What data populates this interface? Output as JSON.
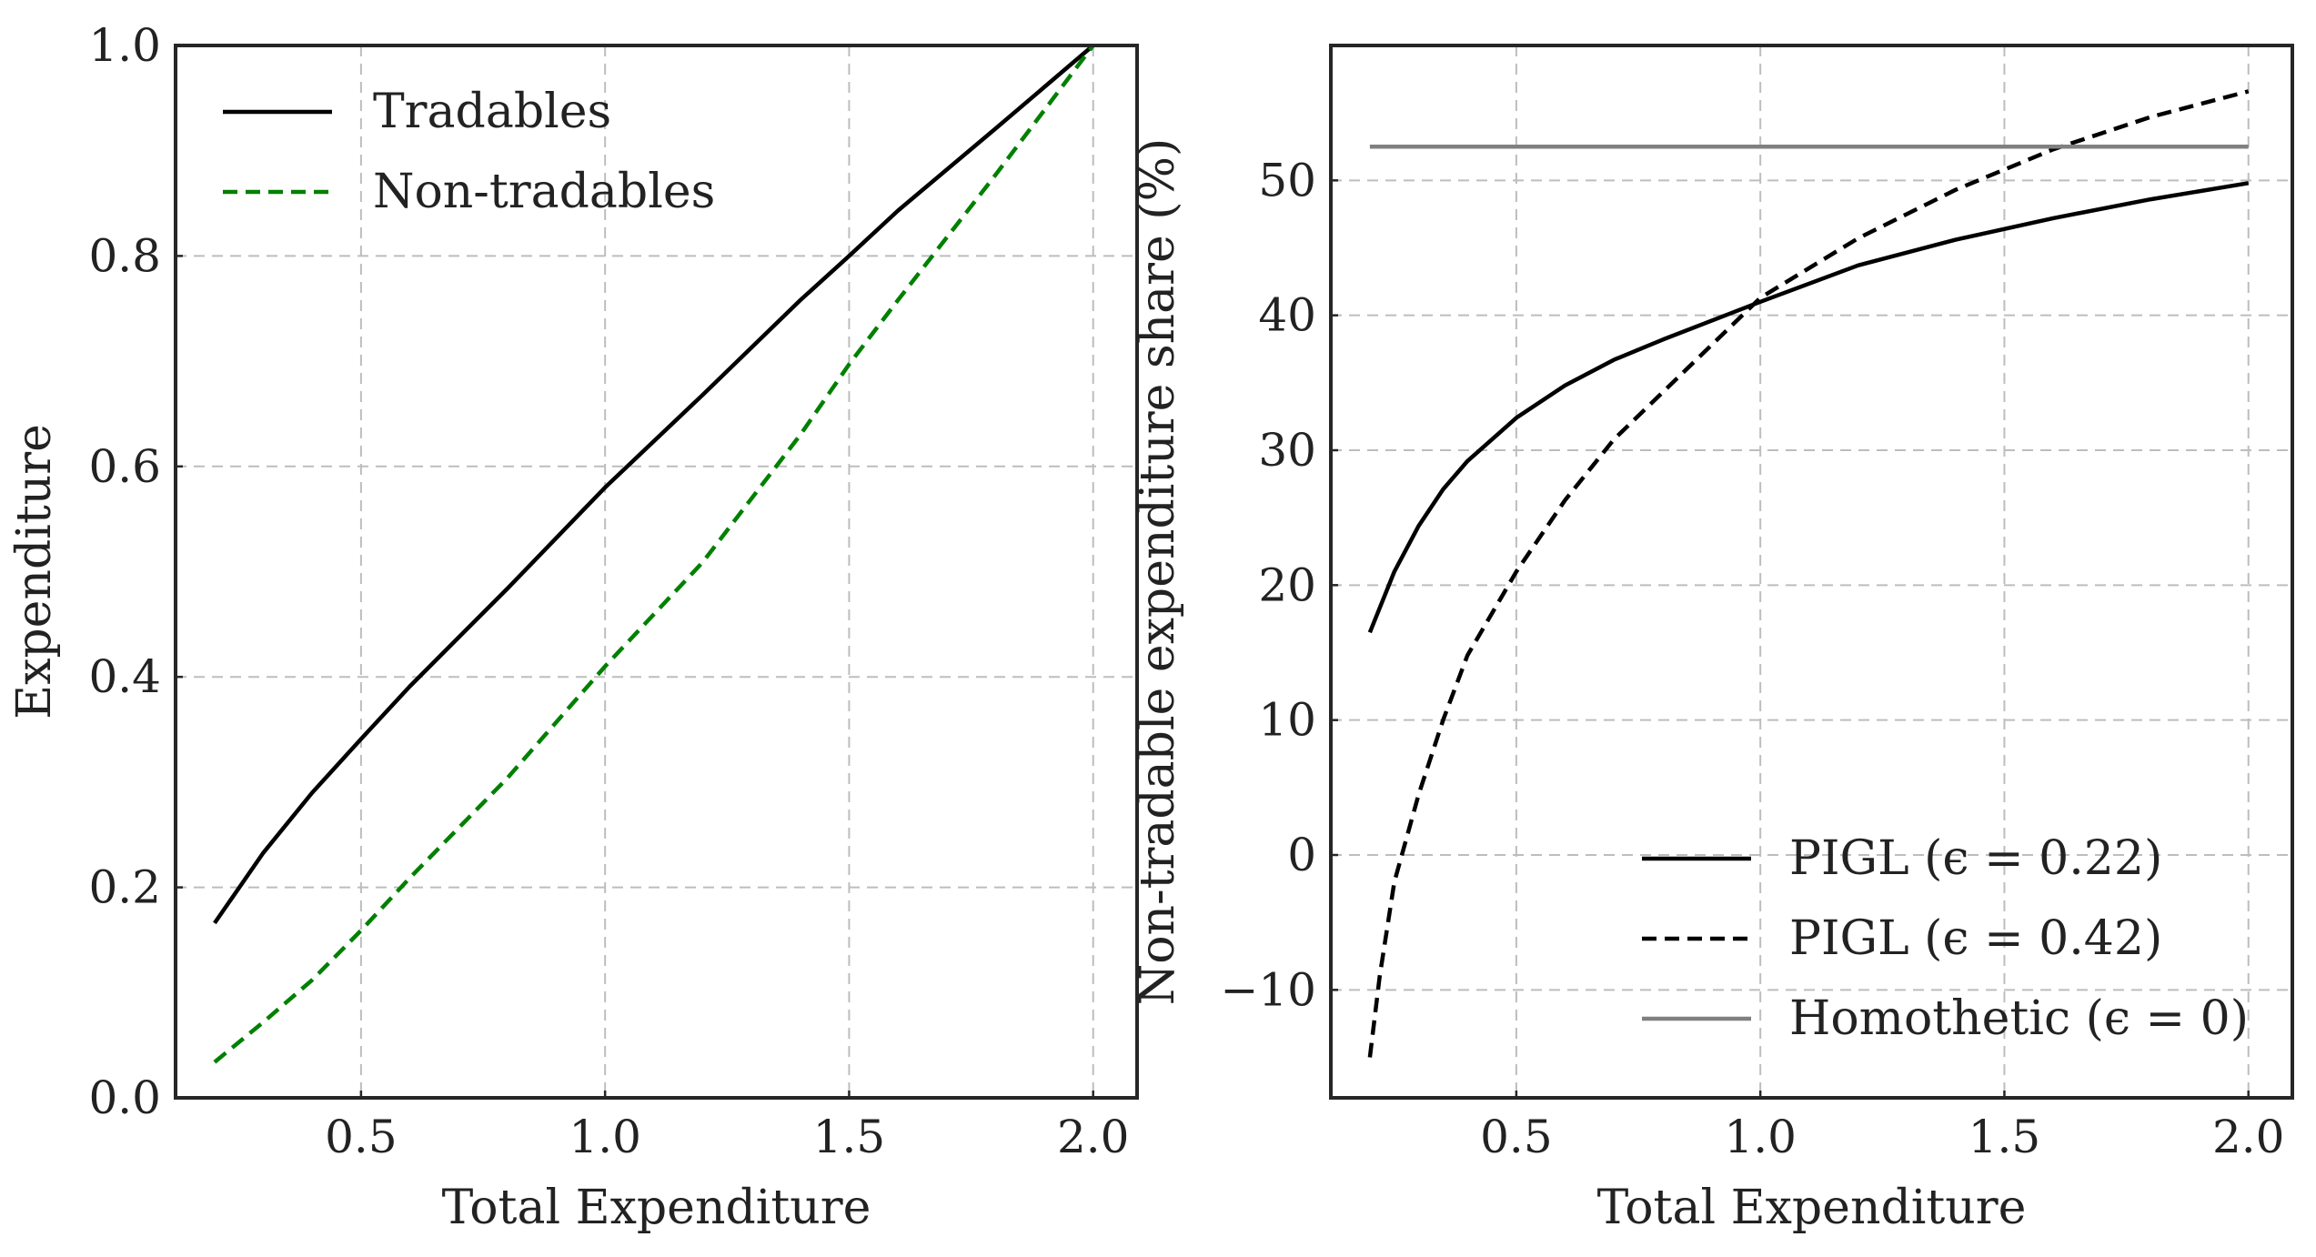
{
  "chart_data": [
    {
      "type": "line",
      "xlabel": "Total Expenditure",
      "ylabel": "Expenditure",
      "xlim": [
        0.12,
        2.09
      ],
      "ylim": [
        0.0,
        1.0
      ],
      "xticks": [
        "0.5",
        "1.0",
        "1.5",
        "2.0"
      ],
      "yticks": [
        "0.0",
        "0.2",
        "0.4",
        "0.6",
        "0.8",
        "1.0"
      ],
      "grid": true,
      "legend_position": "top-left",
      "series": [
        {
          "name": "Tradables",
          "color": "#000000",
          "style": "solid",
          "x": [
            0.2,
            0.3,
            0.4,
            0.5,
            0.6,
            0.8,
            1.0,
            1.2,
            1.4,
            1.5,
            1.6,
            1.8,
            2.0
          ],
          "y": [
            0.166,
            0.233,
            0.29,
            0.341,
            0.391,
            0.484,
            0.58,
            0.668,
            0.758,
            0.8,
            0.843,
            0.921,
            1.0
          ]
        },
        {
          "name": "Non-tradables",
          "color": "#008000",
          "style": "dashed",
          "x": [
            0.2,
            0.3,
            0.4,
            0.5,
            0.6,
            0.8,
            1.0,
            1.2,
            1.4,
            1.5,
            1.6,
            1.8,
            2.0
          ],
          "y": [
            0.034,
            0.072,
            0.112,
            0.159,
            0.209,
            0.304,
            0.41,
            0.509,
            0.63,
            0.697,
            0.758,
            0.877,
            1.0
          ]
        }
      ]
    },
    {
      "type": "line",
      "xlabel": "Total Expenditure",
      "ylabel": "Non-tradable expenditure share (%)",
      "xlim": [
        0.12,
        2.09
      ],
      "ylim": [
        -18,
        60
      ],
      "xticks": [
        "0.5",
        "1.0",
        "1.5",
        "2.0"
      ],
      "yticks": [
        "−10",
        "0",
        "10",
        "20",
        "30",
        "40",
        "50"
      ],
      "ytick_values": [
        -10,
        0,
        10,
        20,
        30,
        40,
        50
      ],
      "grid": true,
      "legend_position": "bottom-right",
      "series": [
        {
          "name": "PIGL (ϵ = 0.22)",
          "color": "#000000",
          "style": "solid",
          "x": [
            0.2,
            0.25,
            0.3,
            0.35,
            0.4,
            0.5,
            0.6,
            0.7,
            0.8,
            1.0,
            1.2,
            1.4,
            1.6,
            1.8,
            2.0
          ],
          "y": [
            16.5,
            21.0,
            24.4,
            27.1,
            29.2,
            32.4,
            34.8,
            36.7,
            38.2,
            41.0,
            43.7,
            45.6,
            47.2,
            48.6,
            49.8
          ]
        },
        {
          "name": "PIGL (ϵ = 0.42)",
          "color": "#000000",
          "style": "dashed",
          "x": [
            0.2,
            0.22,
            0.25,
            0.3,
            0.35,
            0.4,
            0.5,
            0.6,
            0.7,
            0.8,
            1.0,
            1.2,
            1.4,
            1.6,
            1.8,
            2.0
          ],
          "y": [
            -15.0,
            -9.0,
            -2.0,
            4.5,
            10.0,
            14.8,
            21.0,
            26.3,
            30.8,
            34.3,
            41.3,
            45.7,
            49.3,
            52.3,
            54.7,
            56.6
          ]
        },
        {
          "name": "Homothetic (ϵ = 0)",
          "color": "#808080",
          "style": "solid",
          "x": [
            0.2,
            2.0
          ],
          "y": [
            52.5,
            52.5
          ]
        }
      ]
    }
  ]
}
